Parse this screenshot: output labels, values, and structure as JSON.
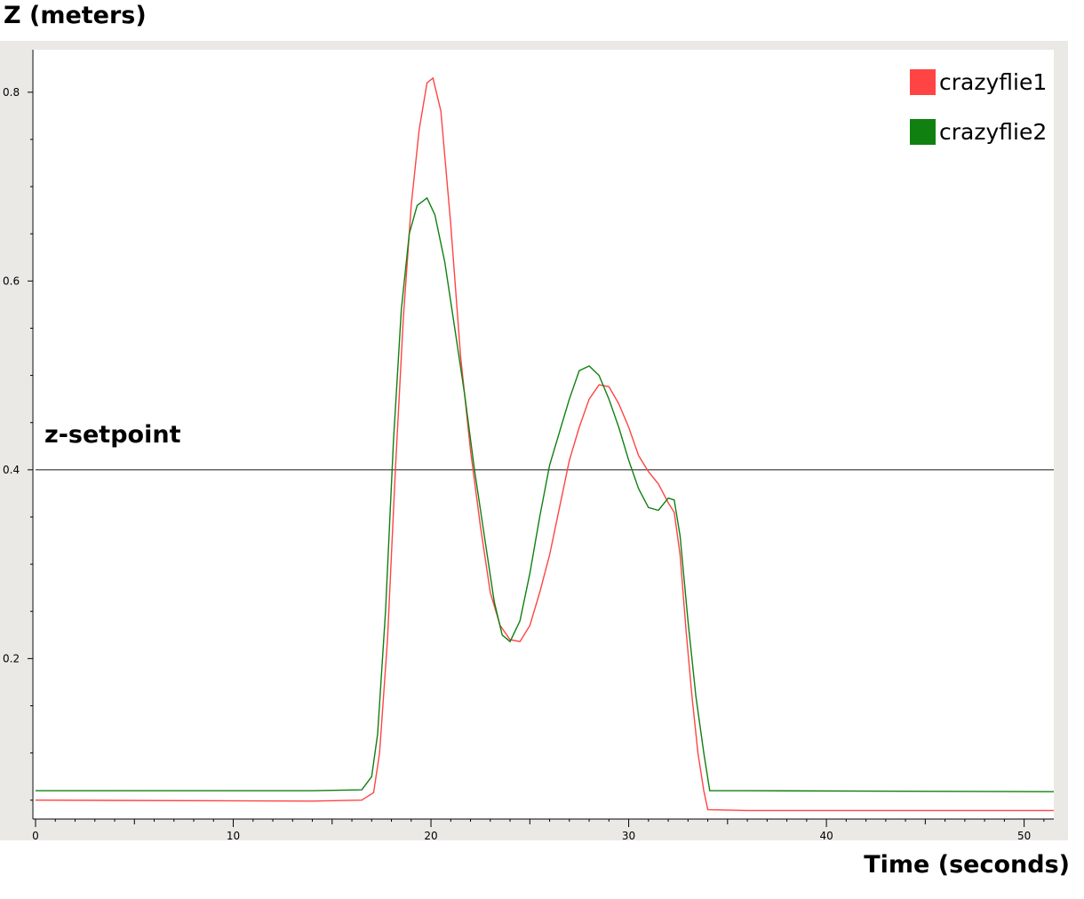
{
  "chart_data": {
    "type": "line",
    "title": "",
    "ylabel": "Z (meters)",
    "xlabel": "Time (seconds)",
    "xlim": [
      0,
      51.5
    ],
    "ylim": [
      0.03,
      0.845
    ],
    "x_ticks": [
      0,
      10,
      20,
      30,
      40,
      50
    ],
    "y_ticks": [
      0.2,
      0.4,
      0.6,
      0.8
    ],
    "x_tick_labels": [
      "0",
      "10",
      "20",
      "30",
      "40",
      "50"
    ],
    "y_tick_labels": [
      "0.2",
      "0.4",
      "0.6",
      "0.8"
    ],
    "grid": false,
    "legend_position": "top-right",
    "reference_line": {
      "label": "z-setpoint",
      "y": 0.4,
      "color": "#555555"
    },
    "series": [
      {
        "name": "crazyflie1",
        "color": "#ff4444",
        "points": [
          [
            0,
            0.05
          ],
          [
            14,
            0.049
          ],
          [
            16.5,
            0.05
          ],
          [
            17.1,
            0.058
          ],
          [
            17.4,
            0.1
          ],
          [
            17.8,
            0.22
          ],
          [
            18.2,
            0.4
          ],
          [
            18.6,
            0.56
          ],
          [
            19.0,
            0.68
          ],
          [
            19.4,
            0.76
          ],
          [
            19.8,
            0.81
          ],
          [
            20.1,
            0.815
          ],
          [
            20.5,
            0.78
          ],
          [
            21.0,
            0.66
          ],
          [
            21.5,
            0.52
          ],
          [
            22.0,
            0.42
          ],
          [
            22.5,
            0.34
          ],
          [
            23.0,
            0.27
          ],
          [
            23.5,
            0.235
          ],
          [
            24.0,
            0.22
          ],
          [
            24.5,
            0.218
          ],
          [
            25.0,
            0.235
          ],
          [
            25.5,
            0.27
          ],
          [
            26.0,
            0.31
          ],
          [
            26.5,
            0.36
          ],
          [
            27.0,
            0.41
          ],
          [
            27.5,
            0.445
          ],
          [
            28.0,
            0.475
          ],
          [
            28.5,
            0.49
          ],
          [
            29.0,
            0.488
          ],
          [
            29.5,
            0.47
          ],
          [
            30.0,
            0.445
          ],
          [
            30.5,
            0.415
          ],
          [
            31.0,
            0.398
          ],
          [
            31.5,
            0.385
          ],
          [
            32.0,
            0.365
          ],
          [
            32.3,
            0.355
          ],
          [
            32.6,
            0.31
          ],
          [
            32.9,
            0.23
          ],
          [
            33.2,
            0.16
          ],
          [
            33.5,
            0.1
          ],
          [
            33.8,
            0.06
          ],
          [
            34.0,
            0.04
          ],
          [
            36.0,
            0.039
          ],
          [
            51.5,
            0.039
          ]
        ]
      },
      {
        "name": "crazyflie2",
        "color": "#108010",
        "points": [
          [
            0,
            0.06
          ],
          [
            14,
            0.06
          ],
          [
            16.5,
            0.061
          ],
          [
            17.0,
            0.075
          ],
          [
            17.3,
            0.12
          ],
          [
            17.7,
            0.25
          ],
          [
            18.1,
            0.43
          ],
          [
            18.5,
            0.57
          ],
          [
            18.9,
            0.65
          ],
          [
            19.3,
            0.68
          ],
          [
            19.8,
            0.688
          ],
          [
            20.2,
            0.67
          ],
          [
            20.7,
            0.62
          ],
          [
            21.2,
            0.55
          ],
          [
            21.7,
            0.48
          ],
          [
            22.2,
            0.4
          ],
          [
            22.7,
            0.33
          ],
          [
            23.2,
            0.26
          ],
          [
            23.6,
            0.225
          ],
          [
            24.0,
            0.218
          ],
          [
            24.5,
            0.24
          ],
          [
            25.0,
            0.29
          ],
          [
            25.5,
            0.35
          ],
          [
            26.0,
            0.405
          ],
          [
            26.5,
            0.44
          ],
          [
            27.0,
            0.475
          ],
          [
            27.5,
            0.505
          ],
          [
            28.0,
            0.51
          ],
          [
            28.5,
            0.5
          ],
          [
            29.0,
            0.475
          ],
          [
            29.5,
            0.445
          ],
          [
            30.0,
            0.41
          ],
          [
            30.5,
            0.38
          ],
          [
            31.0,
            0.36
          ],
          [
            31.5,
            0.357
          ],
          [
            32.0,
            0.37
          ],
          [
            32.3,
            0.368
          ],
          [
            32.6,
            0.33
          ],
          [
            33.0,
            0.24
          ],
          [
            33.4,
            0.16
          ],
          [
            33.8,
            0.1
          ],
          [
            34.1,
            0.06
          ],
          [
            36.0,
            0.06
          ],
          [
            51.5,
            0.059
          ]
        ]
      }
    ]
  }
}
